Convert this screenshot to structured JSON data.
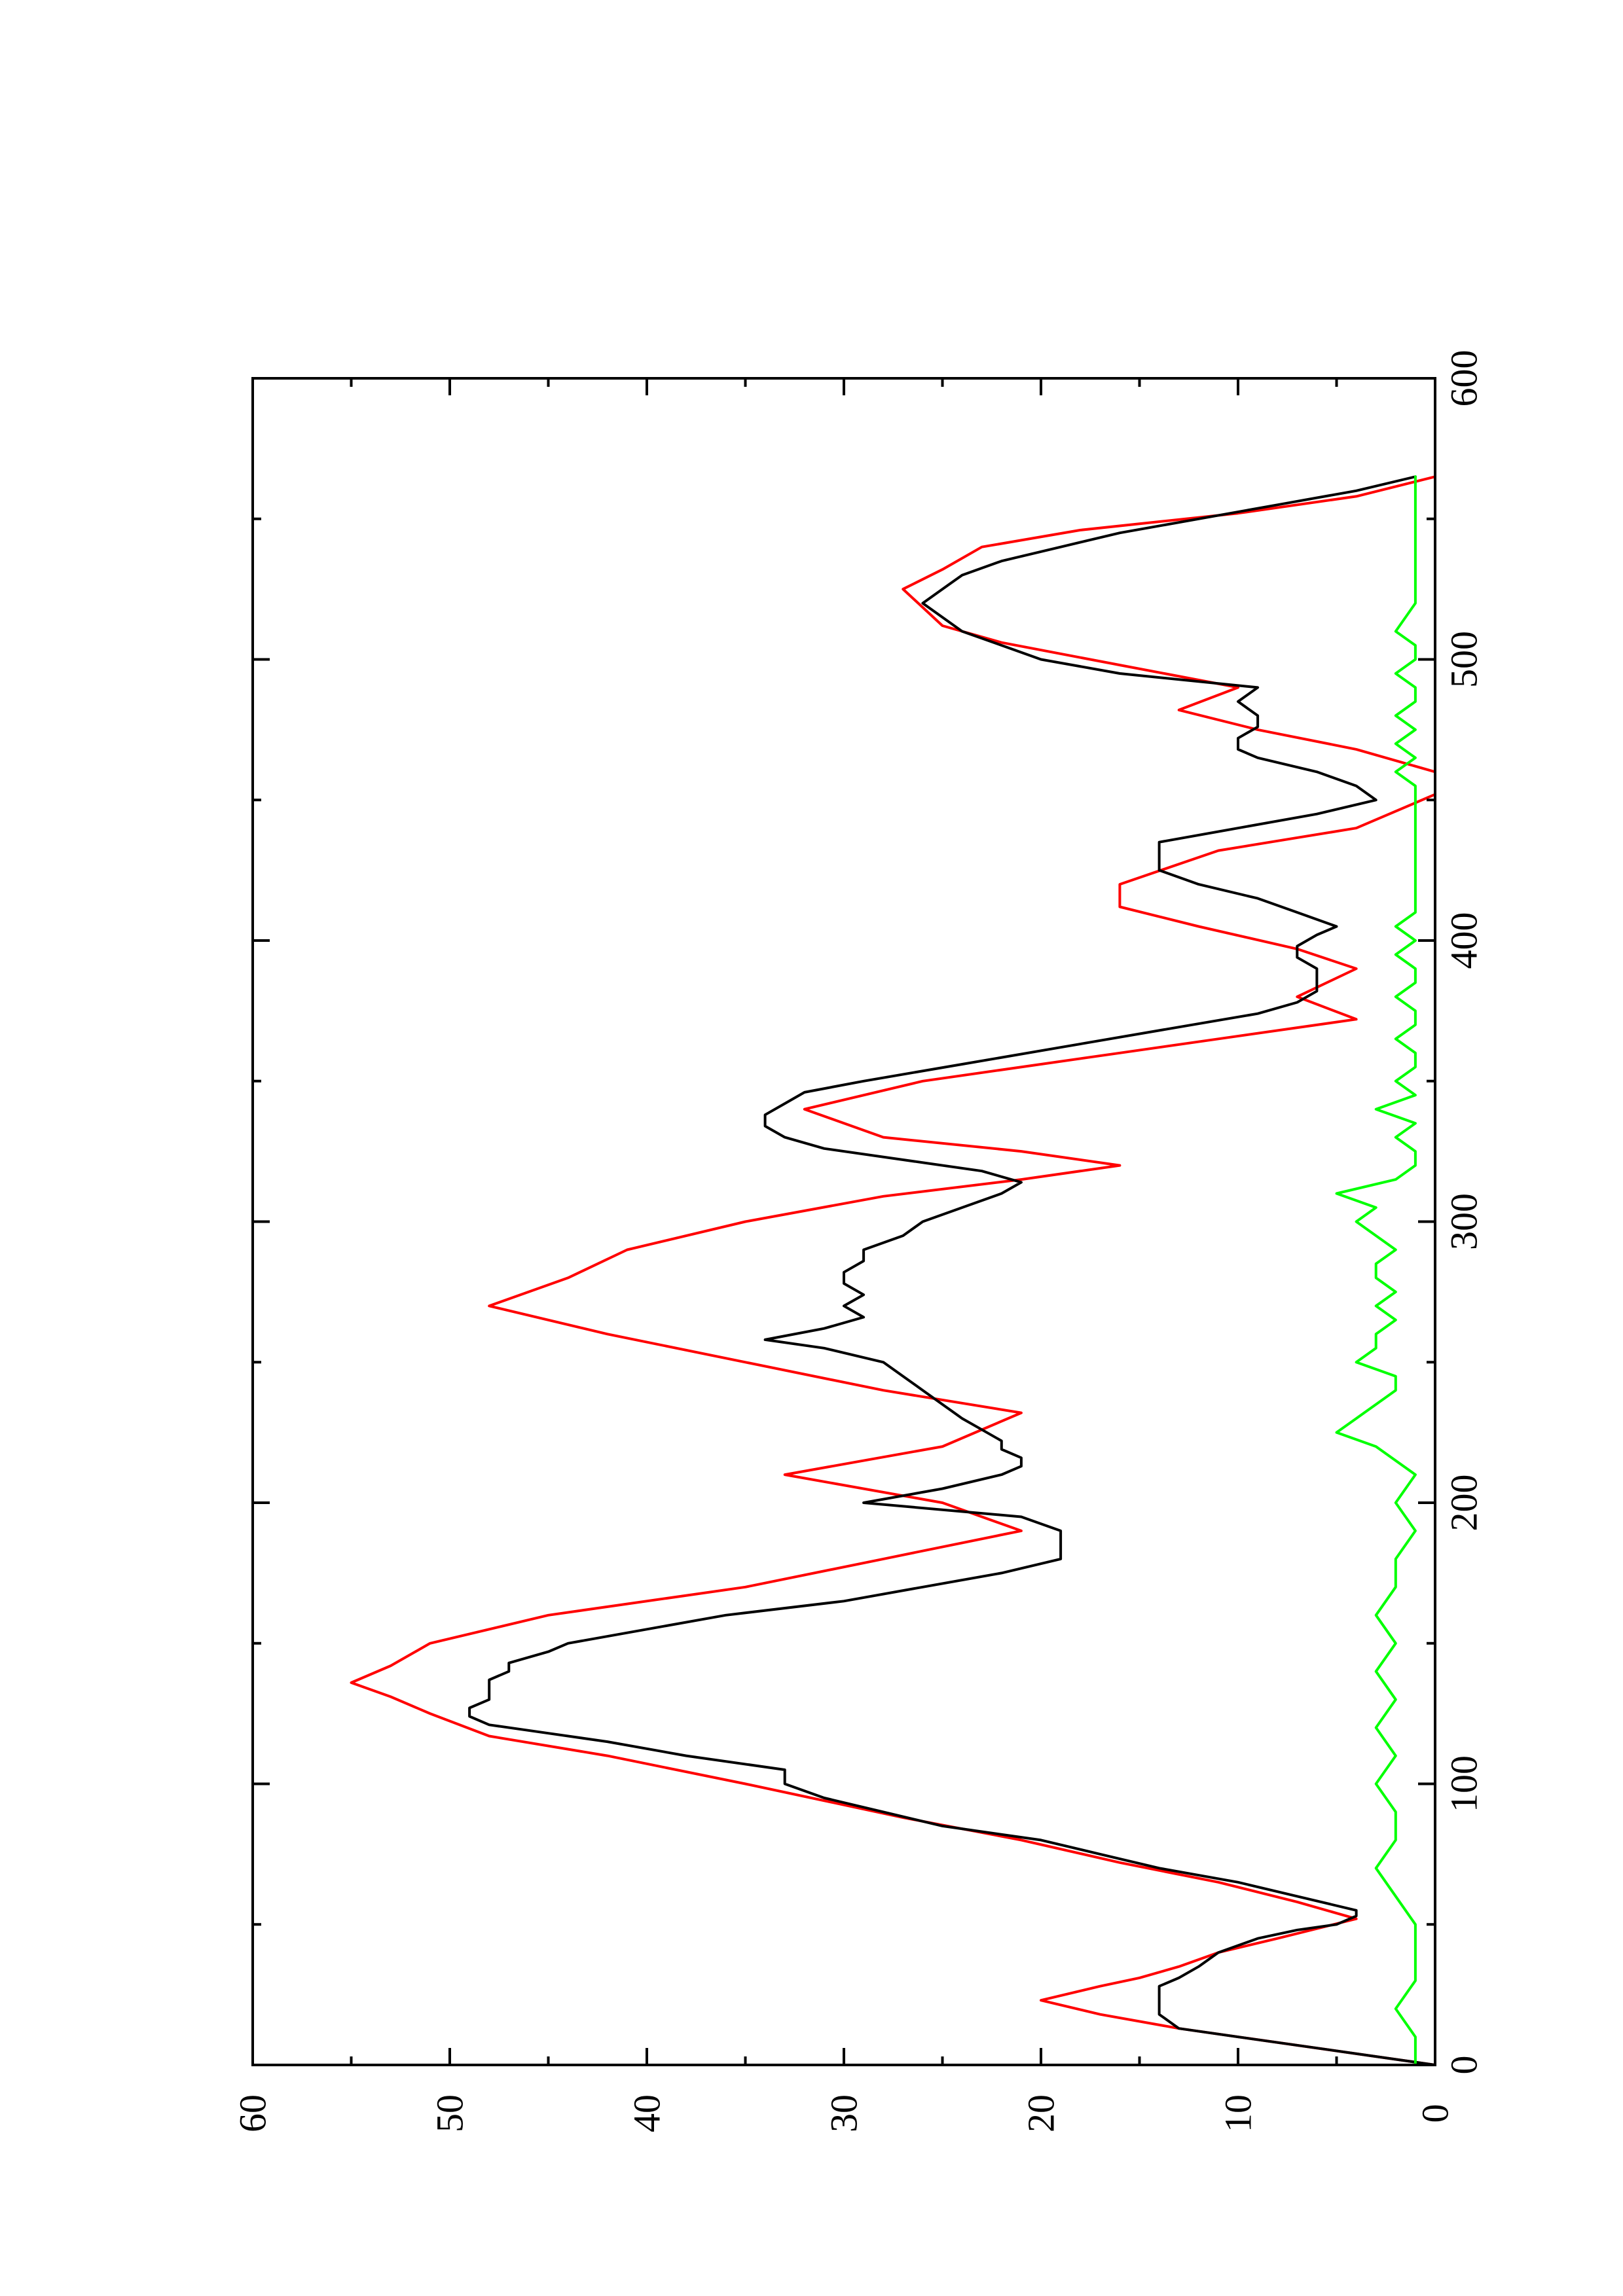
{
  "chart_data": {
    "type": "line",
    "title": "",
    "xlabel": "",
    "ylabel": "",
    "xlim": [
      0,
      600
    ],
    "ylim": [
      0,
      60
    ],
    "x_ticks": [
      0,
      100,
      200,
      300,
      400,
      500,
      600
    ],
    "x_tick_labels": [
      "0",
      "100",
      "200",
      "300",
      "400",
      "500",
      "600"
    ],
    "y_ticks": [
      0,
      10,
      20,
      30,
      40,
      50,
      60
    ],
    "y_tick_labels": [
      "0",
      "10",
      "20",
      "30",
      "40",
      "50",
      "60"
    ],
    "grid": false,
    "legend": "none",
    "series": [
      {
        "color": "#ff0000",
        "style": "step",
        "x": [
          0,
          13,
          13,
          18,
          18,
          23,
          23,
          28,
          28,
          31,
          31,
          35,
          35,
          40,
          40,
          45,
          45,
          52,
          52,
          58,
          58,
          65,
          65,
          72,
          72,
          80,
          80,
          88,
          88,
          100,
          100,
          110,
          110,
          117,
          117,
          125,
          125,
          131,
          131,
          136,
          136,
          142,
          142,
          150,
          150,
          160,
          160,
          170,
          170,
          180,
          180,
          190,
          190,
          200,
          200,
          210,
          210,
          220,
          220,
          232,
          232,
          240,
          240,
          250,
          250,
          260,
          260,
          270,
          270,
          280,
          280,
          290,
          290,
          300,
          300,
          309,
          309,
          315,
          315,
          320,
          320,
          325,
          325,
          330,
          330,
          340,
          340,
          350,
          350,
          360,
          360,
          365,
          365,
          372,
          372,
          380,
          380,
          390,
          390,
          397,
          397,
          405,
          405,
          412,
          412,
          420,
          420,
          432,
          432,
          440,
          440,
          452,
          452,
          460,
          460,
          468,
          468,
          475,
          475,
          482,
          482,
          490,
          490,
          498,
          498,
          506,
          506,
          512,
          512,
          525,
          525,
          532,
          532,
          540,
          540,
          546,
          546,
          552,
          552,
          558,
          558,
          565
        ],
        "y": [
          0,
          13,
          13,
          17,
          17,
          20,
          20,
          17,
          17,
          15,
          15,
          13,
          13,
          11,
          11,
          8,
          8,
          4,
          4,
          7,
          7,
          11,
          11,
          16,
          16,
          21,
          21,
          27,
          27,
          35,
          35,
          42,
          42,
          48,
          48,
          51,
          51,
          53,
          53,
          55,
          55,
          53,
          53,
          51,
          51,
          45,
          45,
          35,
          35,
          28,
          28,
          21,
          21,
          25,
          25,
          33,
          33,
          25,
          25,
          21,
          21,
          28,
          28,
          35,
          35,
          42,
          42,
          48,
          48,
          44,
          44,
          41,
          41,
          35,
          35,
          28,
          28,
          21,
          21,
          16,
          16,
          21,
          21,
          28,
          28,
          32,
          32,
          26,
          26,
          16,
          16,
          11,
          11,
          4,
          4,
          7,
          7,
          4,
          4,
          7,
          7,
          12,
          12,
          16,
          16,
          16,
          16,
          11,
          11,
          4,
          4,
          0,
          0,
          0,
          0,
          4,
          4,
          9,
          9,
          13,
          13,
          10,
          10,
          16,
          16,
          22,
          22,
          25,
          25,
          27,
          27,
          25,
          25,
          23,
          23,
          18,
          18,
          10,
          10,
          4,
          4,
          0
        ]
      },
      {
        "color": "#000000",
        "style": "line",
        "x": [
          0,
          5,
          10,
          13,
          18,
          23,
          28,
          31,
          35,
          40,
          45,
          48,
          50,
          53,
          55,
          60,
          65,
          70,
          75,
          80,
          85,
          90,
          95,
          100,
          105,
          110,
          115,
          118,
          121,
          124,
          127,
          130,
          133,
          137,
          140,
          143,
          147,
          150,
          155,
          160,
          165,
          170,
          175,
          180,
          185,
          190,
          195,
          200,
          205,
          210,
          213,
          216,
          219,
          222,
          226,
          230,
          235,
          240,
          245,
          250,
          255,
          258,
          262,
          266,
          270,
          274,
          278,
          282,
          286,
          290,
          295,
          300,
          305,
          310,
          314,
          318,
          322,
          326,
          330,
          334,
          338,
          342,
          346,
          350,
          356,
          362,
          368,
          374,
          378,
          382,
          386,
          390,
          394,
          398,
          402,
          405,
          410,
          415,
          420,
          425,
          430,
          435,
          440,
          445,
          450,
          455,
          460,
          465,
          468,
          472,
          476,
          480,
          485,
          490,
          495,
          500,
          505,
          510,
          515,
          520,
          525,
          530,
          535,
          540,
          545,
          550,
          555,
          560,
          565
        ],
        "y": [
          0,
          5,
          10,
          13,
          14,
          14,
          14,
          13,
          12,
          11,
          9,
          7,
          5,
          4,
          4,
          7,
          10,
          14,
          17,
          20,
          25,
          28,
          31,
          33,
          33,
          38,
          42,
          45,
          48,
          49,
          49,
          48,
          48,
          48,
          47,
          47,
          45,
          44,
          40,
          36,
          30,
          26,
          22,
          19,
          19,
          19,
          21,
          29,
          25,
          22,
          21,
          21,
          22,
          22,
          23,
          24,
          25,
          26,
          27,
          28,
          31,
          34,
          31,
          29,
          30,
          29,
          30,
          30,
          29,
          29,
          27,
          26,
          24,
          22,
          21,
          23,
          27,
          31,
          33,
          34,
          34,
          33,
          32,
          29,
          24,
          19,
          14,
          9,
          7,
          6,
          6,
          6,
          7,
          7,
          6,
          5,
          7,
          9,
          12,
          14,
          14,
          14,
          10,
          6,
          3,
          4,
          6,
          9,
          10,
          10,
          9,
          9,
          10,
          9,
          16,
          20,
          22,
          24,
          25,
          26,
          25,
          24,
          22,
          19,
          16,
          12,
          8,
          4,
          1
        ]
      },
      {
        "color": "#00ff00",
        "style": "line",
        "x": [
          0,
          10,
          20,
          30,
          40,
          50,
          60,
          70,
          80,
          90,
          100,
          110,
          120,
          130,
          140,
          150,
          160,
          170,
          180,
          190,
          200,
          210,
          220,
          225,
          230,
          235,
          240,
          245,
          250,
          255,
          260,
          265,
          270,
          275,
          280,
          285,
          290,
          295,
          300,
          305,
          310,
          315,
          320,
          325,
          330,
          335,
          340,
          345,
          350,
          355,
          360,
          365,
          370,
          375,
          380,
          385,
          390,
          395,
          400,
          405,
          410,
          420,
          430,
          440,
          450,
          455,
          460,
          465,
          470,
          475,
          480,
          485,
          490,
          495,
          500,
          505,
          510,
          520,
          530,
          540,
          550,
          560,
          565
        ],
        "y": [
          1,
          1,
          2,
          1,
          1,
          1,
          2,
          3,
          2,
          2,
          3,
          2,
          3,
          2,
          3,
          2,
          3,
          2,
          2,
          1,
          2,
          1,
          3,
          5,
          4,
          3,
          2,
          2,
          4,
          3,
          3,
          2,
          3,
          2,
          3,
          3,
          2,
          3,
          4,
          3,
          5,
          2,
          1,
          1,
          2,
          1,
          3,
          1,
          2,
          1,
          1,
          2,
          1,
          1,
          2,
          1,
          1,
          2,
          1,
          2,
          1,
          1,
          1,
          1,
          1,
          1,
          2,
          1,
          2,
          1,
          2,
          1,
          1,
          2,
          1,
          1,
          2,
          1,
          1,
          1,
          1,
          1,
          1
        ]
      }
    ]
  }
}
